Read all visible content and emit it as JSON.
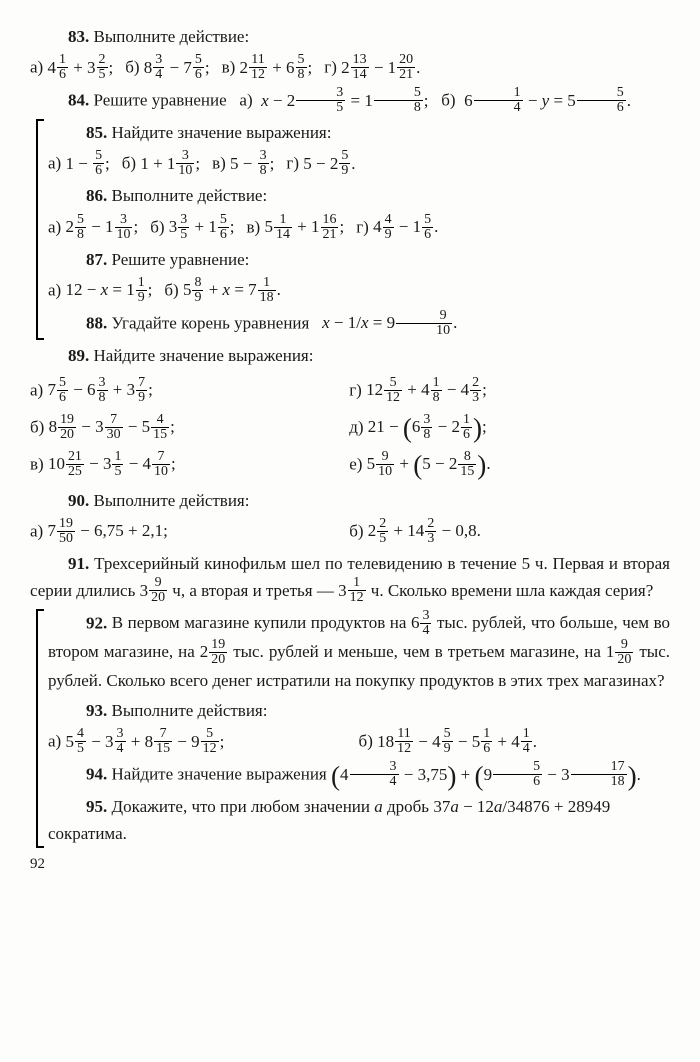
{
  "page_number": "92",
  "p83": {
    "num": "83.",
    "title": "Выполните действие:",
    "a_lbl": "а)",
    "a": "4<f>1/6</f> + 3<f>2/5</f>;",
    "b_lbl": "б)",
    "b": "8<f>3/4</f> − 7<f>5/6</f>;",
    "v_lbl": "в)",
    "v": "2<f>11/12</f> + 6<f>5/8</f>;",
    "g_lbl": "г)",
    "g": "2<f>13/14</f> − 1<f>20/21</f>."
  },
  "p84": {
    "num": "84.",
    "title": "Решите уравнение",
    "a_lbl": "а)",
    "a": "<i>x</i> − 2<f>3/5</f> = 1<f>5/8</f>;",
    "b_lbl": "б)",
    "b": "6<f>1/4</f> − <i>y</i> = 5<f>5/6</f>."
  },
  "p85": {
    "num": "85.",
    "title": "Найдите значение выражения:",
    "a_lbl": "а)",
    "a": "1 − <f>5/6</f>;",
    "b_lbl": "б)",
    "b": "1 + 1<f>3/10</f>;",
    "v_lbl": "в)",
    "v": "5 − <f>3/8</f>;",
    "g_lbl": "г)",
    "g": "5 − 2<f>5/9</f>."
  },
  "p86": {
    "num": "86.",
    "title": "Выполните действие:",
    "a_lbl": "а)",
    "a": "2<f>5/8</f> − 1<f>3/10</f>;",
    "b_lbl": "б)",
    "b": "3<f>3/5</f> + 1<f>5/6</f>;",
    "v_lbl": "в)",
    "v": "5<f>1/14</f> + 1<f>16/21</f>;",
    "g_lbl": "г)",
    "g": "4<f>4/9</f> − 1<f>5/6</f>."
  },
  "p87": {
    "num": "87.",
    "title": "Решите уравнение:",
    "a_lbl": "а)",
    "a": "12 − <i>x</i> = 1<f>1/9</f>;",
    "b_lbl": "б)",
    "b": "5<f>8/9</f> + <i>x</i> = 7<f>1/18</f>."
  },
  "p88": {
    "num": "88.",
    "title": "Угадайте корень уравнения",
    "expr": "<i>x</i> − <f>1/<i>x</i></f> = 9<f>9/10</f>."
  },
  "p89": {
    "num": "89.",
    "title": "Найдите значение выражения:",
    "a_lbl": "а)",
    "a": "7<f>5/6</f> − 6<f>3/8</f> + 3<f>7/9</f>;",
    "g_lbl": "г)",
    "g": "12<f>5/12</f> + 4<f>1/8</f> − 4<f>2/3</f>;",
    "b_lbl": "б)",
    "b": "8<f>19/20</f> − 3<f>7/30</f> − 5<f>4/15</f>;",
    "d_lbl": "д)",
    "d": "21 − <P>6<f>3/8</f> − 2<f>1/6</f></P>;",
    "v_lbl": "в)",
    "v": "10<f>21/25</f> − 3<f>1/5</f> − 4<f>7/10</f>;",
    "e_lbl": "е)",
    "e": "5<f>9/10</f> + <P>5 − 2<f>8/15</f></P>."
  },
  "p90": {
    "num": "90.",
    "title": "Выполните действия:",
    "a_lbl": "а)",
    "a": "7<f>19/50</f> − 6,75 + 2,1;",
    "b_lbl": "б)",
    "b": "2<f>2/5</f> + 14<f>2/3</f> − 0,8."
  },
  "p91": {
    "num": "91.",
    "text": "Трехсерийный кинофильм шел по телевидению в течение 5 ч. Первая и вторая серии длились 3<f>9/20</f> ч, а вторая и третья — 3<f>1/12</f> ч. Сколько времени шла каждая серия?"
  },
  "p92": {
    "num": "92.",
    "text": "В первом магазине купили продуктов на 6<f>3/4</f> тыс. рублей, что больше, чем во втором магазине, на 2<f>19/20</f> тыс. рублей и меньше, чем в третьем магазине, на 1<f>9/20</f> тыс. рублей. Сколько всего денег истратили на покупку продуктов в этих трех магазинах?"
  },
  "p93": {
    "num": "93.",
    "title": "Выполните действия:",
    "a_lbl": "а)",
    "a": "5<f>4/5</f> − 3<f>3/4</f> + 8<f>7/15</f> − 9<f>5/12</f>;",
    "b_lbl": "б)",
    "b": "18<f>11/12</f> − 4<f>5/9</f> − 5<f>1/6</f> + 4<f>1/4</f>."
  },
  "p94": {
    "num": "94.",
    "title": "Найдите значение выражения",
    "expr": "<P>4<f>3/4</f> − 3,75</P> + <P>9<f>5/6</f> − 3<f>17/18</f></P>."
  },
  "p95": {
    "num": "95.",
    "text": "Докажите, что при любом значении <i>a</i> дробь <f>37<i>a</i> − 12<i>a</i>/34876 + 28949</f> сократима."
  }
}
